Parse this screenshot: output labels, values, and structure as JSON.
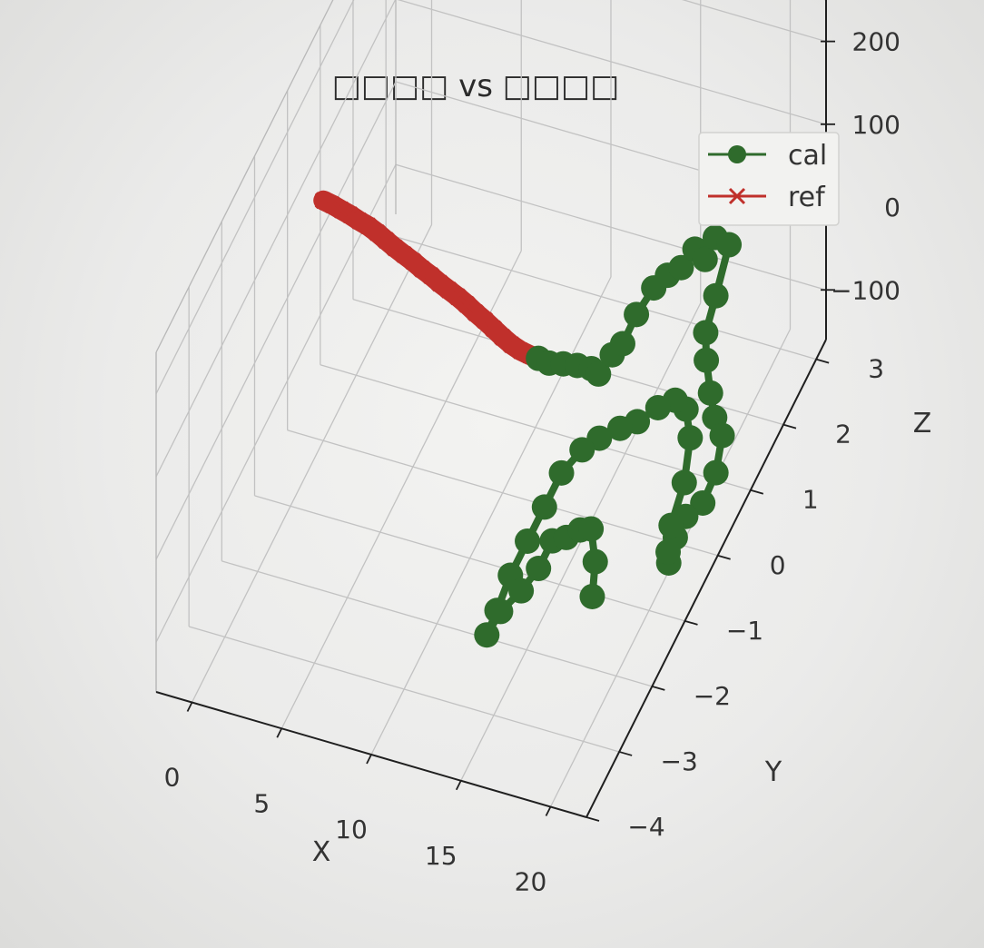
{
  "chart_data": {
    "type": "scatter",
    "title": "□□□□ vs □□□□",
    "xlabel": "X",
    "ylabel": "Y",
    "zlabel": "Z",
    "x_ticks": [
      "0",
      "5",
      "10",
      "15",
      "20"
    ],
    "y_ticks": [
      "−4",
      "−3",
      "−2",
      "−1",
      "0",
      "1",
      "2",
      "3"
    ],
    "z_ticks": [
      "−100",
      "0",
      "100",
      "200"
    ],
    "grid": true,
    "legend_position": "top-right",
    "series": [
      {
        "name": "cal",
        "marker": "circle",
        "color": "#2f6b2c",
        "points": [
          {
            "x": 12.0,
            "y": 0.0,
            "z": 15
          },
          {
            "x": 12.6,
            "y": 0.0,
            "z": 13
          },
          {
            "x": 13.2,
            "y": 0.1,
            "z": 8
          },
          {
            "x": 13.8,
            "y": 0.2,
            "z": 2
          },
          {
            "x": 14.4,
            "y": 0.3,
            "z": -6
          },
          {
            "x": 14.8,
            "y": 0.3,
            "z": -10
          },
          {
            "x": 15.2,
            "y": 0.5,
            "z": 0
          },
          {
            "x": 15.6,
            "y": 0.6,
            "z": 8
          },
          {
            "x": 16.0,
            "y": 0.8,
            "z": 30
          },
          {
            "x": 16.6,
            "y": 1.0,
            "z": 50
          },
          {
            "x": 17.0,
            "y": 1.2,
            "z": 52
          },
          {
            "x": 17.4,
            "y": 1.4,
            "z": 48
          },
          {
            "x": 17.8,
            "y": 1.6,
            "z": 57
          },
          {
            "x": 18.0,
            "y": 1.8,
            "z": 30
          },
          {
            "x": 18.2,
            "y": 2.0,
            "z": 42
          },
          {
            "x": 18.6,
            "y": 2.2,
            "z": 20
          },
          {
            "x": 18.6,
            "y": 1.8,
            "z": -10
          },
          {
            "x": 18.4,
            "y": 1.6,
            "z": -40
          },
          {
            "x": 18.8,
            "y": 1.4,
            "z": -55
          },
          {
            "x": 19.4,
            "y": 1.2,
            "z": -75
          },
          {
            "x": 20.0,
            "y": 1.0,
            "z": -85
          },
          {
            "x": 20.6,
            "y": 0.9,
            "z": -95
          },
          {
            "x": 20.8,
            "y": 0.6,
            "z": -115
          },
          {
            "x": 20.8,
            "y": 0.2,
            "z": -120
          },
          {
            "x": 20.4,
            "y": -0.1,
            "z": -115
          },
          {
            "x": 20.0,
            "y": -0.2,
            "z": -135
          },
          {
            "x": 20.0,
            "y": -0.4,
            "z": -150
          },
          {
            "x": 19.6,
            "y": -0.2,
            "z": -155
          },
          {
            "x": 19.4,
            "y": 0.0,
            "z": -140
          },
          {
            "x": 19.4,
            "y": 0.4,
            "z": -120
          },
          {
            "x": 19.0,
            "y": 0.8,
            "z": -100
          },
          {
            "x": 18.4,
            "y": 1.0,
            "z": -85
          },
          {
            "x": 17.8,
            "y": 1.0,
            "z": -78
          },
          {
            "x": 17.2,
            "y": 0.8,
            "z": -75
          },
          {
            "x": 16.6,
            "y": 0.5,
            "z": -72
          },
          {
            "x": 16.0,
            "y": 0.3,
            "z": -68
          },
          {
            "x": 15.4,
            "y": 0.0,
            "z": -60
          },
          {
            "x": 14.8,
            "y": -0.2,
            "z": -62
          },
          {
            "x": 14.2,
            "y": -0.5,
            "z": -70
          },
          {
            "x": 13.8,
            "y": -0.8,
            "z": -90
          },
          {
            "x": 13.4,
            "y": -1.1,
            "z": -110
          },
          {
            "x": 13.0,
            "y": -1.4,
            "z": -130
          },
          {
            "x": 12.8,
            "y": -1.7,
            "z": -150
          },
          {
            "x": 12.6,
            "y": -1.9,
            "z": -165
          },
          {
            "x": 13.0,
            "y": -1.7,
            "z": -150
          },
          {
            "x": 13.6,
            "y": -1.4,
            "z": -145
          },
          {
            "x": 14.2,
            "y": -1.2,
            "z": -130
          },
          {
            "x": 14.6,
            "y": -1.0,
            "z": -110
          },
          {
            "x": 15.2,
            "y": -0.9,
            "z": -110
          },
          {
            "x": 15.8,
            "y": -0.8,
            "z": -105
          },
          {
            "x": 16.4,
            "y": -0.8,
            "z": -100
          },
          {
            "x": 17.0,
            "y": -1.0,
            "z": -120
          },
          {
            "x": 17.2,
            "y": -1.2,
            "z": -145
          }
        ]
      },
      {
        "name": "ref",
        "marker": "x",
        "color": "#c0302b",
        "points": [
          {
            "x": 0.0,
            "y": 0.0,
            "z": 130
          },
          {
            "x": 0.5,
            "y": 0.0,
            "z": 128
          },
          {
            "x": 1.0,
            "y": 0.0,
            "z": 125
          },
          {
            "x": 1.5,
            "y": 0.0,
            "z": 122
          },
          {
            "x": 2.0,
            "y": 0.0,
            "z": 118
          },
          {
            "x": 2.5,
            "y": 0.0,
            "z": 115
          },
          {
            "x": 3.0,
            "y": 0.0,
            "z": 110
          },
          {
            "x": 3.5,
            "y": 0.0,
            "z": 104
          },
          {
            "x": 4.0,
            "y": 0.0,
            "z": 98
          },
          {
            "x": 4.5,
            "y": 0.0,
            "z": 93
          },
          {
            "x": 5.0,
            "y": 0.0,
            "z": 88
          },
          {
            "x": 5.5,
            "y": 0.0,
            "z": 82
          },
          {
            "x": 6.0,
            "y": 0.0,
            "z": 77
          },
          {
            "x": 6.5,
            "y": 0.0,
            "z": 71
          },
          {
            "x": 7.0,
            "y": 0.0,
            "z": 66
          },
          {
            "x": 7.5,
            "y": 0.0,
            "z": 61
          },
          {
            "x": 8.0,
            "y": 0.0,
            "z": 55
          },
          {
            "x": 8.5,
            "y": 0.0,
            "z": 48
          },
          {
            "x": 9.0,
            "y": 0.0,
            "z": 42
          },
          {
            "x": 9.5,
            "y": 0.0,
            "z": 35
          },
          {
            "x": 10.0,
            "y": 0.0,
            "z": 28
          },
          {
            "x": 10.5,
            "y": 0.0,
            "z": 22
          },
          {
            "x": 11.0,
            "y": 0.0,
            "z": 18
          },
          {
            "x": 11.5,
            "y": 0.0,
            "z": 16
          },
          {
            "x": 12.0,
            "y": 0.0,
            "z": 15
          }
        ]
      }
    ]
  }
}
